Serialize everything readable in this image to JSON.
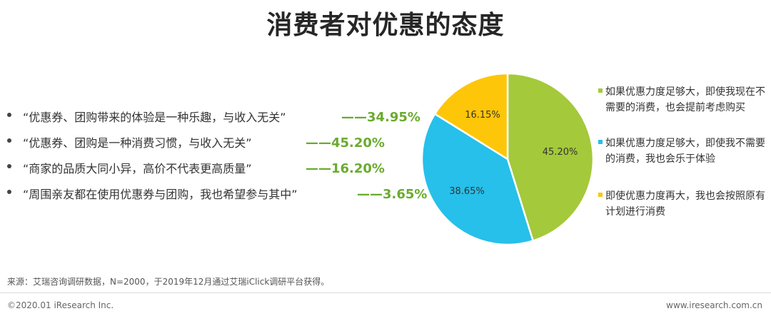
{
  "page": {
    "title": "消费者对优惠的态度",
    "source": "来源：艾瑞咨询调研数据，N=2000，于2019年12月通过艾瑞iClick调研平台获得。",
    "copyright": "©2020.01 iResearch Inc.",
    "website": "www.iresearch.com.cn"
  },
  "bullets": [
    {
      "text": "“优惠券、团购带来的体验是一种乐趣，与收入无关”",
      "pct": "——34.95%"
    },
    {
      "text": "“优惠券、团购是一种消费习惯，与收入无关”",
      "pct": "——45.20%"
    },
    {
      "text": "“商家的品质大同小异，高价不代表更高质量”",
      "pct": "——16.20%"
    },
    {
      "text": "“周围亲友都在使用优惠券与团购，我也希望参与其中”",
      "pct": "——3.65%"
    }
  ],
  "colors": {
    "green": "#a4c93b",
    "blue": "#26c0ea",
    "yellow": "#fdc608",
    "accent_text": "#6aab2e"
  },
  "chart_data": {
    "type": "pie",
    "slices": [
      {
        "label": "如果优惠力度足够大，即使我现在不需要的消费，也会提前考虑购买",
        "value": 45.2,
        "value_label": "45.20%",
        "color": "#a4c93b"
      },
      {
        "label": "如果优惠力度足够大，即使我不需要的消费，我也会乐于体验",
        "value": 38.65,
        "value_label": "38.65%",
        "color": "#26c0ea"
      },
      {
        "label": "即使优惠力度再大，我也会按照原有计划进行消费",
        "value": 16.15,
        "value_label": "16.15%",
        "color": "#fdc608"
      }
    ],
    "legend_position": "right"
  }
}
